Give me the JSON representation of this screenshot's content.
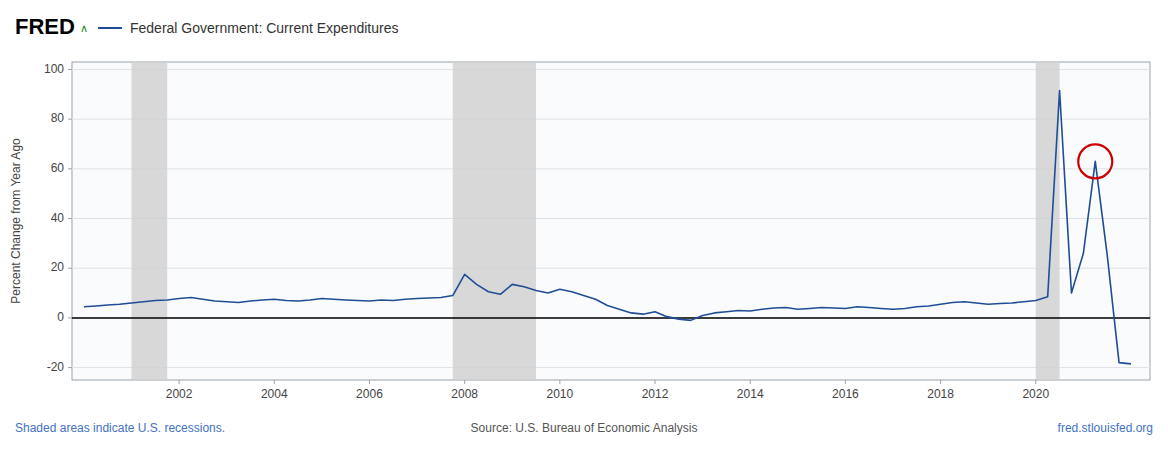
{
  "chart_data": {
    "type": "line",
    "logo": "FRED",
    "logo_mark": "∧",
    "title": "Federal Government: Current Expenditures",
    "ylabel": "Percent Change from Year Ago",
    "color": "#1f4e96",
    "grid": true,
    "xlim": [
      1999.75,
      2022.4
    ],
    "xticks": [
      2002,
      2004,
      2006,
      2008,
      2010,
      2012,
      2014,
      2016,
      2018,
      2020
    ],
    "ylim": [
      -25,
      103
    ],
    "yticks": [
      -20,
      0,
      20,
      40,
      60,
      80,
      100
    ],
    "recession_bands": [
      [
        2001.0,
        2001.75
      ],
      [
        2007.75,
        2009.5
      ],
      [
        2020.0,
        2020.5
      ]
    ],
    "annotation": {
      "x": 2021.25,
      "y": 63.0,
      "color": "#cc0000"
    },
    "footer": [
      {
        "text": "Shaded areas indicate U.S. recessions.",
        "color": "#4472c4"
      },
      {
        "text": "Source: U.S. Bureau of Economic Analysis",
        "color": "#555555"
      },
      {
        "text": "fred.stlouisfed.org",
        "color": "#4472c4"
      }
    ],
    "x": [
      2000.0,
      2000.25,
      2000.5,
      2000.75,
      2001.0,
      2001.25,
      2001.5,
      2001.75,
      2002.0,
      2002.25,
      2002.5,
      2002.75,
      2003.0,
      2003.25,
      2003.5,
      2003.75,
      2004.0,
      2004.25,
      2004.5,
      2004.75,
      2005.0,
      2005.25,
      2005.5,
      2005.75,
      2006.0,
      2006.25,
      2006.5,
      2006.75,
      2007.0,
      2007.25,
      2007.5,
      2007.75,
      2008.0,
      2008.25,
      2008.5,
      2008.75,
      2009.0,
      2009.25,
      2009.5,
      2009.75,
      2010.0,
      2010.25,
      2010.5,
      2010.75,
      2011.0,
      2011.25,
      2011.5,
      2011.75,
      2012.0,
      2012.25,
      2012.5,
      2012.75,
      2013.0,
      2013.25,
      2013.5,
      2013.75,
      2014.0,
      2014.25,
      2014.5,
      2014.75,
      2015.0,
      2015.25,
      2015.5,
      2015.75,
      2016.0,
      2016.25,
      2016.5,
      2016.75,
      2017.0,
      2017.25,
      2017.5,
      2017.75,
      2018.0,
      2018.25,
      2018.5,
      2018.75,
      2019.0,
      2019.25,
      2019.5,
      2019.75,
      2020.0,
      2020.25,
      2020.5,
      2020.75,
      2021.0,
      2021.25,
      2021.5,
      2021.75,
      2022.0
    ],
    "values": [
      4.5,
      4.8,
      5.2,
      5.5,
      6.0,
      6.5,
      7.0,
      7.2,
      7.8,
      8.2,
      7.5,
      6.8,
      6.5,
      6.2,
      6.8,
      7.2,
      7.5,
      7.0,
      6.8,
      7.2,
      7.8,
      7.5,
      7.2,
      7.0,
      6.8,
      7.2,
      7.0,
      7.5,
      7.8,
      8.0,
      8.2,
      9.0,
      17.5,
      13.5,
      10.5,
      9.5,
      13.5,
      12.5,
      11.0,
      10.0,
      11.5,
      10.5,
      9.0,
      7.5,
      5.0,
      3.5,
      2.0,
      1.5,
      2.5,
      0.5,
      -0.5,
      -1.0,
      1.0,
      2.0,
      2.5,
      3.0,
      2.8,
      3.5,
      4.0,
      4.2,
      3.5,
      3.8,
      4.2,
      4.0,
      3.8,
      4.5,
      4.2,
      3.8,
      3.5,
      3.8,
      4.5,
      4.8,
      5.5,
      6.2,
      6.5,
      6.0,
      5.5,
      5.8,
      6.0,
      6.5,
      7.0,
      8.5,
      91.5,
      10.0,
      26.0,
      63.0,
      25.5,
      -18.0,
      -18.5
    ]
  }
}
